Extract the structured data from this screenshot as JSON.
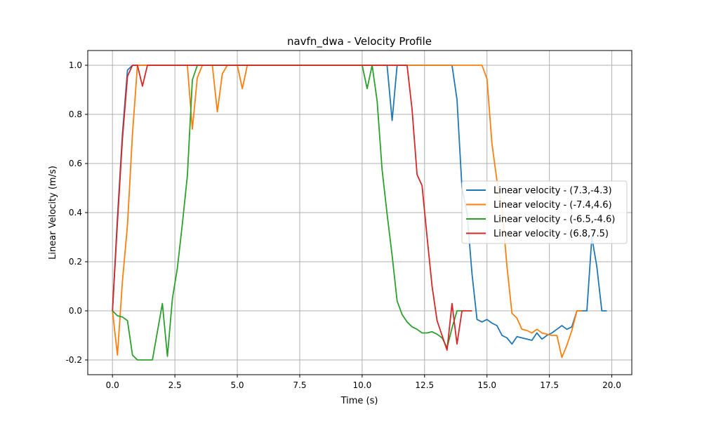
{
  "chart_data": {
    "type": "line",
    "title": "navfn_dwa - Velocity Profile",
    "xlabel": "Time (s)",
    "ylabel": "Linear Velocity (m/s)",
    "xlim": [
      -0.99,
      20.8
    ],
    "ylim": [
      -0.26,
      1.06
    ],
    "x_ticks": [
      0.0,
      2.5,
      5.0,
      7.5,
      10.0,
      12.5,
      15.0,
      17.5,
      20.0
    ],
    "x_tick_labels": [
      "0.0",
      "2.5",
      "5.0",
      "7.5",
      "10.0",
      "12.5",
      "15.0",
      "17.5",
      "20.0"
    ],
    "y_ticks": [
      -0.2,
      0.0,
      0.2,
      0.4,
      0.6,
      0.8,
      1.0
    ],
    "y_tick_labels": [
      "-0.2",
      "0.0",
      "0.2",
      "0.4",
      "0.6",
      "0.8",
      "1.0"
    ],
    "grid": true,
    "legend_position": "center-right",
    "series": [
      {
        "name": "Linear velocity - (7.3,-4.3)",
        "color": "#1f77b4",
        "x": [
          0,
          0.2,
          0.4,
          0.6,
          0.8,
          1.0,
          1.2,
          1.6,
          2.0,
          3.0,
          5.0,
          8.0,
          10.0,
          11.0,
          11.2,
          11.4,
          11.6,
          12.0,
          13.0,
          13.6,
          13.8,
          14.0,
          14.2,
          14.4,
          14.6,
          14.8,
          15.0,
          15.2,
          15.4,
          15.6,
          15.8,
          16.0,
          16.2,
          16.4,
          16.6,
          16.8,
          17.0,
          17.2,
          17.4,
          17.6,
          17.8,
          18.0,
          18.2,
          18.4,
          18.6,
          18.8,
          19.0,
          19.2,
          19.4,
          19.6,
          19.8
        ],
        "y": [
          0.0,
          0.38,
          0.72,
          0.98,
          1.0,
          1.0,
          1.0,
          1.0,
          1.0,
          1.0,
          1.0,
          1.0,
          1.0,
          1.0,
          0.775,
          1.0,
          1.0,
          1.0,
          1.0,
          1.0,
          0.86,
          0.5,
          0.4,
          0.15,
          -0.035,
          -0.045,
          -0.035,
          -0.05,
          -0.06,
          -0.1,
          -0.11,
          -0.135,
          -0.105,
          -0.11,
          -0.115,
          -0.12,
          -0.09,
          -0.115,
          -0.1,
          -0.09,
          -0.075,
          -0.06,
          -0.075,
          -0.065,
          0.0,
          0.0,
          0.0,
          0.3,
          0.18,
          0.0,
          0.0
        ]
      },
      {
        "name": "Linear velocity - (-7.4,4.6)",
        "color": "#ff7f0e",
        "x": [
          0,
          0.2,
          0.4,
          0.6,
          0.8,
          1.0,
          1.2,
          2.0,
          3.0,
          3.2,
          3.4,
          3.6,
          4.0,
          4.2,
          4.4,
          4.6,
          5.0,
          5.2,
          5.4,
          6.0,
          8.0,
          10.0,
          12.0,
          14.0,
          14.8,
          15.0,
          15.2,
          15.4,
          15.6,
          15.8,
          16.0,
          16.2,
          16.4,
          16.6,
          16.8,
          17.0,
          17.2,
          17.4,
          17.6,
          17.8,
          18.0,
          18.2,
          18.4,
          18.6,
          18.8
        ],
        "y": [
          0.0,
          -0.18,
          0.12,
          0.35,
          0.72,
          1.0,
          1.0,
          1.0,
          1.0,
          0.74,
          0.95,
          1.0,
          1.0,
          0.81,
          0.965,
          1.0,
          1.0,
          0.905,
          1.0,
          1.0,
          1.0,
          1.0,
          1.0,
          1.0,
          1.0,
          0.945,
          0.68,
          0.53,
          0.42,
          0.18,
          -0.01,
          -0.03,
          -0.075,
          -0.08,
          -0.09,
          -0.075,
          -0.09,
          -0.095,
          -0.1,
          -0.1,
          -0.19,
          -0.14,
          -0.08,
          0.0,
          0.0
        ]
      },
      {
        "name": "Linear velocity - (-6.5,-4.6)",
        "color": "#2ca02c",
        "x": [
          0,
          0.2,
          0.4,
          0.6,
          0.8,
          1.0,
          1.2,
          1.6,
          2.0,
          2.2,
          2.4,
          2.6,
          2.8,
          3.0,
          3.2,
          3.4,
          3.6,
          4.0,
          6.0,
          8.0,
          10.0,
          10.2,
          10.4,
          10.6,
          10.8,
          11.0,
          11.2,
          11.4,
          11.6,
          11.8,
          12.0,
          12.2,
          12.4,
          12.6,
          12.8,
          13.0,
          13.2,
          13.4,
          13.6,
          13.8,
          14.0
        ],
        "y": [
          0.0,
          -0.02,
          -0.025,
          -0.04,
          -0.18,
          -0.2,
          -0.2,
          -0.2,
          0.03,
          -0.185,
          0.05,
          0.175,
          0.355,
          0.55,
          0.94,
          1.0,
          1.0,
          1.0,
          1.0,
          1.0,
          1.0,
          0.905,
          1.0,
          0.855,
          0.575,
          0.395,
          0.225,
          0.04,
          -0.015,
          -0.045,
          -0.065,
          -0.075,
          -0.09,
          -0.09,
          -0.085,
          -0.095,
          -0.11,
          -0.15,
          -0.07,
          0.0,
          0.0
        ]
      },
      {
        "name": "Linear velocity - (6.8,7.5)",
        "color": "#d62728",
        "x": [
          0,
          0.2,
          0.4,
          0.6,
          0.8,
          1.0,
          1.2,
          1.4,
          2.0,
          4.0,
          6.0,
          8.0,
          10.0,
          11.0,
          11.4,
          11.6,
          11.8,
          12.0,
          12.2,
          12.4,
          12.6,
          12.8,
          13.0,
          13.2,
          13.4,
          13.6,
          13.8,
          14.0,
          14.2,
          14.4
        ],
        "y": [
          0.0,
          0.36,
          0.7,
          0.955,
          1.0,
          1.0,
          0.915,
          1.0,
          1.0,
          1.0,
          1.0,
          1.0,
          1.0,
          1.0,
          1.0,
          1.0,
          1.0,
          0.82,
          0.555,
          0.51,
          0.3,
          0.1,
          -0.04,
          -0.1,
          -0.16,
          0.03,
          -0.135,
          0.0,
          0.0,
          0.0
        ]
      }
    ]
  }
}
